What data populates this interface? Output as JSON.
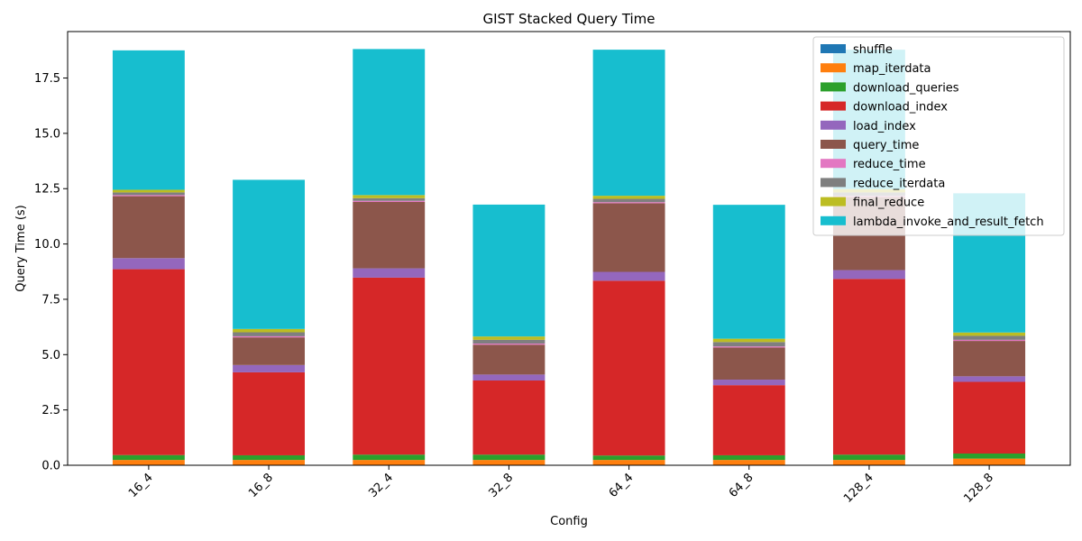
{
  "chart_data": {
    "type": "bar",
    "stacked": true,
    "title": "GIST Stacked Query Time",
    "xlabel": "Config",
    "ylabel": "Query Time (s)",
    "ylim": [
      0,
      19.6
    ],
    "yticks": [
      0.0,
      2.5,
      5.0,
      7.5,
      10.0,
      12.5,
      15.0,
      17.5
    ],
    "ytick_labels": [
      "0.0",
      "2.5",
      "5.0",
      "7.5",
      "10.0",
      "12.5",
      "15.0",
      "17.5"
    ],
    "grid": false,
    "legend_position": "top-right",
    "categories": [
      "16_4",
      "16_8",
      "32_4",
      "32_8",
      "64_4",
      "64_8",
      "128_4",
      "128_8"
    ],
    "series": [
      {
        "name": "shuffle",
        "color": "#1f77b4",
        "values": [
          0.02,
          0.02,
          0.02,
          0.02,
          0.02,
          0.02,
          0.02,
          0.02
        ]
      },
      {
        "name": "map_iterdata",
        "color": "#ff7f0e",
        "values": [
          0.22,
          0.22,
          0.22,
          0.22,
          0.22,
          0.22,
          0.22,
          0.28
        ]
      },
      {
        "name": "download_queries",
        "color": "#2ca02c",
        "values": [
          0.22,
          0.21,
          0.24,
          0.24,
          0.2,
          0.21,
          0.24,
          0.23
        ]
      },
      {
        "name": "download_index",
        "color": "#d62728",
        "values": [
          8.4,
          3.75,
          8.0,
          3.35,
          7.9,
          3.17,
          7.94,
          3.24
        ]
      },
      {
        "name": "load_index",
        "color": "#9467bd",
        "values": [
          0.5,
          0.33,
          0.42,
          0.27,
          0.4,
          0.25,
          0.4,
          0.25
        ]
      },
      {
        "name": "query_time",
        "color": "#8c564b",
        "values": [
          2.8,
          1.25,
          3.0,
          1.35,
          3.1,
          1.45,
          3.3,
          1.6
        ]
      },
      {
        "name": "reduce_time",
        "color": "#e377c2",
        "values": [
          0.05,
          0.05,
          0.05,
          0.05,
          0.05,
          0.05,
          0.05,
          0.05
        ]
      },
      {
        "name": "reduce_iterdata",
        "color": "#7f7f7f",
        "values": [
          0.12,
          0.18,
          0.12,
          0.17,
          0.15,
          0.2,
          0.16,
          0.18
        ]
      },
      {
        "name": "final_reduce",
        "color": "#bcbd22",
        "values": [
          0.12,
          0.15,
          0.14,
          0.15,
          0.14,
          0.15,
          0.15,
          0.15
        ]
      },
      {
        "name": "lambda_invoke_and_result_fetch",
        "color": "#17becf",
        "values": [
          6.3,
          6.74,
          6.6,
          5.96,
          6.6,
          6.05,
          6.3,
          6.29
        ]
      }
    ]
  }
}
